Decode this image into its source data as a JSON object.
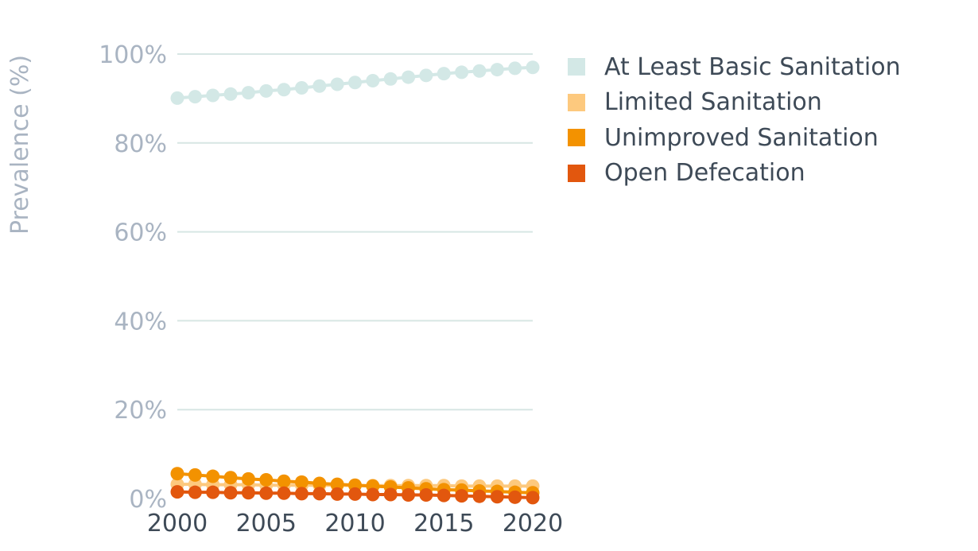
{
  "chart_data": {
    "type": "line",
    "ylabel": "Prevalence (%)",
    "xlabel": "",
    "x": [
      2000,
      2001,
      2002,
      2003,
      2004,
      2005,
      2006,
      2007,
      2008,
      2009,
      2010,
      2011,
      2012,
      2013,
      2014,
      2015,
      2016,
      2017,
      2018,
      2019,
      2020
    ],
    "ylim": [
      0,
      100
    ],
    "xlim": [
      2000,
      2020
    ],
    "yticks": [
      "0%",
      "20%",
      "40%",
      "60%",
      "80%",
      "100%"
    ],
    "xticks": [
      "2000",
      "2005",
      "2010",
      "2015",
      "2020"
    ],
    "grid": "horizontal",
    "legend_position": "right",
    "series": [
      {
        "name": "At Least Basic Sanitation",
        "color": "#d3e8e6",
        "values": [
          90.1,
          90.4,
          90.7,
          91.0,
          91.3,
          91.7,
          92.0,
          92.4,
          92.8,
          93.2,
          93.6,
          94.0,
          94.4,
          94.8,
          95.2,
          95.6,
          95.9,
          96.2,
          96.5,
          96.8,
          97.0
        ]
      },
      {
        "name": "Limited Sanitation",
        "color": "#fdc97e",
        "values": [
          3.2,
          3.2,
          3.1,
          3.1,
          3.1,
          3.0,
          3.0,
          3.0,
          3.0,
          3.0,
          2.9,
          2.9,
          2.9,
          2.9,
          2.9,
          2.9,
          2.8,
          2.8,
          2.8,
          2.8,
          2.8
        ]
      },
      {
        "name": "Unimproved Sanitation",
        "color": "#f39200",
        "values": [
          5.6,
          5.3,
          5.0,
          4.7,
          4.4,
          4.2,
          3.9,
          3.7,
          3.4,
          3.2,
          3.0,
          2.8,
          2.6,
          2.4,
          2.2,
          2.0,
          1.9,
          1.7,
          1.6,
          1.4,
          1.3
        ]
      },
      {
        "name": "Open Defecation",
        "color": "#e2570e",
        "values": [
          1.5,
          1.4,
          1.4,
          1.3,
          1.3,
          1.2,
          1.2,
          1.1,
          1.1,
          1.0,
          1.0,
          0.9,
          0.9,
          0.8,
          0.8,
          0.7,
          0.6,
          0.5,
          0.4,
          0.3,
          0.2
        ]
      }
    ]
  }
}
